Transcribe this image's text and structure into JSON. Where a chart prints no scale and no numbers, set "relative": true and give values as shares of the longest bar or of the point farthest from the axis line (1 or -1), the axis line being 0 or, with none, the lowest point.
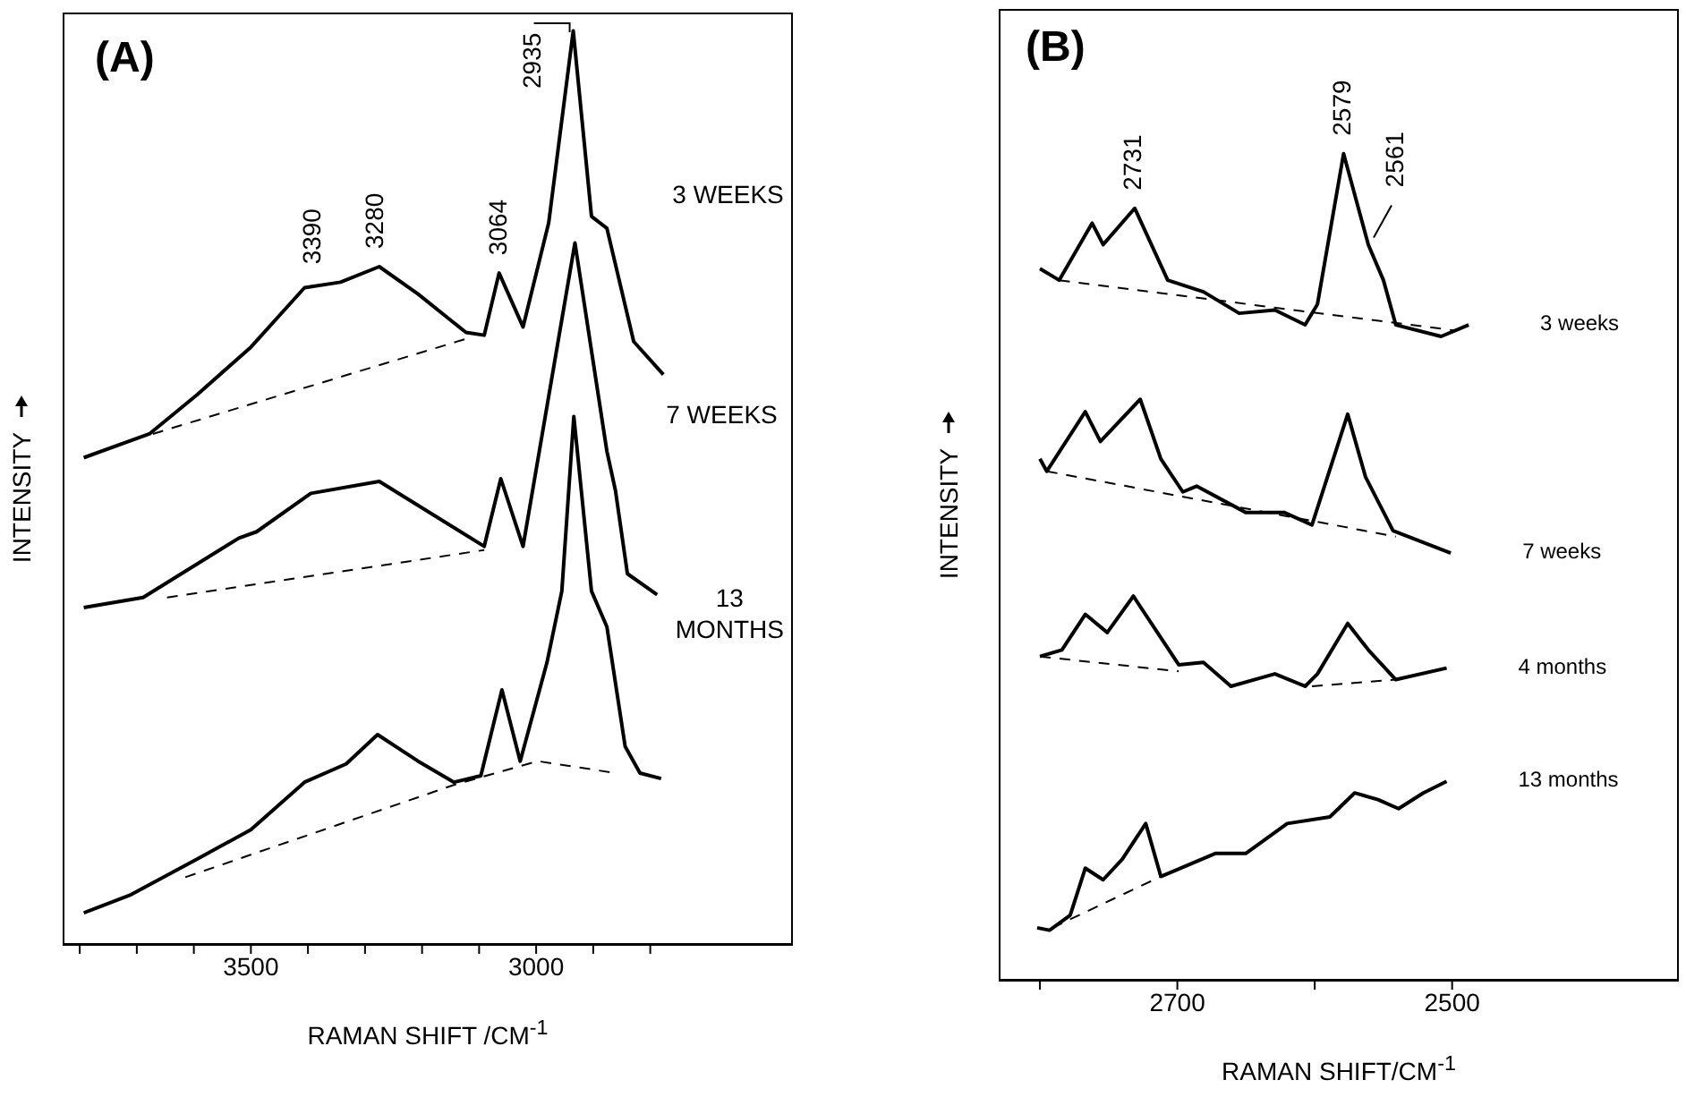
{
  "chart_data": [
    {
      "type": "line",
      "title": "(A)",
      "xlabel": "RAMAN SHIFT /CM$^{-1}$",
      "ylabel": "INTENSITY",
      "relative": true,
      "line_style": "solid",
      "marker": "none",
      "xlim": [
        3830,
        2550
      ],
      "xticks": [
        {
          "value": 3800,
          "label": null
        },
        {
          "value": 3700,
          "label": null
        },
        {
          "value": 3600,
          "label": null
        },
        3500,
        {
          "value": 3400,
          "label": null
        },
        {
          "value": 3300,
          "label": null
        },
        {
          "value": 3200,
          "label": null
        },
        {
          "value": 3100,
          "label": null
        },
        3000,
        {
          "value": 2900,
          "label": null
        },
        {
          "value": 2800,
          "label": null
        }
      ],
      "annotations": [
        {
          "text": "3390",
          "x": 3390,
          "y": 0.725
        },
        {
          "text": "3280",
          "x": 3280,
          "y": 0.742
        },
        {
          "text": "3064",
          "x": 3064,
          "y": 0.735
        },
        {
          "text": "2935",
          "x": 2935,
          "y": 1.0
        }
      ],
      "series": [
        {
          "name": "3 WEEKS",
          "color": "#000000",
          "x": [
            3793,
            3678,
            3594,
            3500,
            3406,
            3343,
            3275,
            3207,
            3123,
            3091,
            3065,
            3023,
            2978,
            2935,
            2903,
            2876,
            2829,
            2777
          ],
          "values": [
            0.533,
            0.559,
            0.602,
            0.654,
            0.719,
            0.725,
            0.742,
            0.712,
            0.67,
            0.667,
            0.735,
            0.676,
            0.79,
            1.0,
            0.797,
            0.784,
            0.66,
            0.624
          ]
        },
        {
          "name": "7 WEEKS",
          "color": "#000000",
          "x": [
            3793,
            3689,
            3521,
            3490,
            3395,
            3275,
            3091,
            3062,
            3023,
            2932,
            2876,
            2861,
            2840,
            2788
          ],
          "values": [
            0.369,
            0.38,
            0.445,
            0.452,
            0.494,
            0.507,
            0.436,
            0.51,
            0.436,
            0.768,
            0.54,
            0.497,
            0.406,
            0.383
          ]
        },
        {
          "name": "13 MONTHS",
          "color": "#000000",
          "x": [
            3793,
            3710,
            3594,
            3500,
            3406,
            3333,
            3278,
            3207,
            3144,
            3097,
            3060,
            3028,
            2981,
            2955,
            2934,
            2903,
            2876,
            2844,
            2818,
            2781
          ],
          "values": [
            0.035,
            0.055,
            0.094,
            0.126,
            0.178,
            0.198,
            0.23,
            0.201,
            0.178,
            0.185,
            0.279,
            0.201,
            0.309,
            0.387,
            0.578,
            0.387,
            0.348,
            0.217,
            0.188,
            0.182
          ]
        },
        {
          "type": "line",
          "line_style": "dashed",
          "color": "#000000",
          "x": [
            3672,
            3123
          ],
          "values": [
            0.559,
            0.663
          ]
        },
        {
          "type": "line",
          "line_style": "dashed",
          "color": "#000000",
          "x": [
            3647,
            3091
          ],
          "values": [
            0.38,
            0.432
          ]
        },
        {
          "type": "line",
          "line_style": "dashed",
          "color": "#000000",
          "x": [
            3615,
            3144,
            2997,
            2861
          ],
          "values": [
            0.074,
            0.175,
            0.201,
            0.188
          ]
        }
      ]
    },
    {
      "type": "line",
      "title": "(B)",
      "xlabel": "RAMAN SHIFT/CM$^{-1}$",
      "ylabel": "INTENSITY",
      "relative": true,
      "line_style": "solid",
      "marker": "none",
      "xlim": [
        2830,
        2335
      ],
      "xticks": [
        {
          "value": 2800,
          "label": null
        },
        2700,
        {
          "value": 2600,
          "label": null
        },
        2500
      ],
      "annotations": [
        {
          "text": "2731",
          "x": 2731,
          "y": 0.934
        },
        {
          "text": "2579",
          "x": 2579,
          "y": 1.0
        },
        {
          "text": "2561",
          "x": 2561,
          "y": 0.89
        }
      ],
      "series": [
        {
          "name": "3 weeks",
          "color": "#000000",
          "x": [
            2800,
            2786,
            2762,
            2754,
            2731,
            2707,
            2681,
            2655,
            2629,
            2607,
            2598,
            2579,
            2561,
            2550,
            2541,
            2508,
            2488
          ],
          "values": [
            0.861,
            0.847,
            0.916,
            0.89,
            0.934,
            0.847,
            0.833,
            0.807,
            0.811,
            0.793,
            0.818,
            1.0,
            0.89,
            0.847,
            0.793,
            0.779,
            0.793
          ]
        },
        {
          "name": "7 weeks",
          "color": "#000000",
          "x": [
            2800,
            2795,
            2767,
            2756,
            2727,
            2712,
            2696,
            2686,
            2650,
            2622,
            2602,
            2576,
            2563,
            2543,
            2501
          ],
          "values": [
            0.631,
            0.616,
            0.688,
            0.652,
            0.703,
            0.631,
            0.591,
            0.598,
            0.566,
            0.566,
            0.551,
            0.685,
            0.609,
            0.544,
            0.517
          ]
        },
        {
          "name": "4 months",
          "color": "#000000",
          "x": [
            2800,
            2784,
            2767,
            2751,
            2732,
            2699,
            2681,
            2661,
            2629,
            2607,
            2598,
            2576,
            2561,
            2541,
            2504
          ],
          "values": [
            0.392,
            0.4,
            0.443,
            0.421,
            0.465,
            0.382,
            0.385,
            0.356,
            0.371,
            0.356,
            0.371,
            0.432,
            0.4,
            0.364,
            0.378
          ]
        },
        {
          "name": "13 months",
          "color": "#000000",
          "x": [
            2802,
            2793,
            2778,
            2767,
            2754,
            2740,
            2723,
            2712,
            2672,
            2650,
            2620,
            2589,
            2571,
            2554,
            2539,
            2521,
            2504
          ],
          "values": [
            0.064,
            0.061,
            0.079,
            0.136,
            0.122,
            0.147,
            0.19,
            0.126,
            0.154,
            0.154,
            0.19,
            0.198,
            0.227,
            0.219,
            0.208,
            0.227,
            0.241
          ]
        },
        {
          "type": "line",
          "line_style": "dashed",
          "color": "#000000",
          "x": [
            2786,
            2497
          ],
          "values": [
            0.847,
            0.786
          ]
        },
        {
          "type": "line",
          "line_style": "dashed",
          "color": "#000000",
          "x": [
            2795,
            2541
          ],
          "values": [
            0.616,
            0.537
          ]
        },
        {
          "type": "line",
          "line_style": "dashed",
          "color": "#000000",
          "x": [
            2800,
            2699,
            2650,
            2602,
            2541
          ],
          "values": [
            0.392,
            0.374,
            null,
            0.356,
            0.364
          ]
        },
        {
          "type": "line",
          "line_style": "dashed",
          "color": "#000000",
          "x": [
            2791,
            2712
          ],
          "values": [
            0.064,
            0.126
          ]
        }
      ]
    }
  ]
}
